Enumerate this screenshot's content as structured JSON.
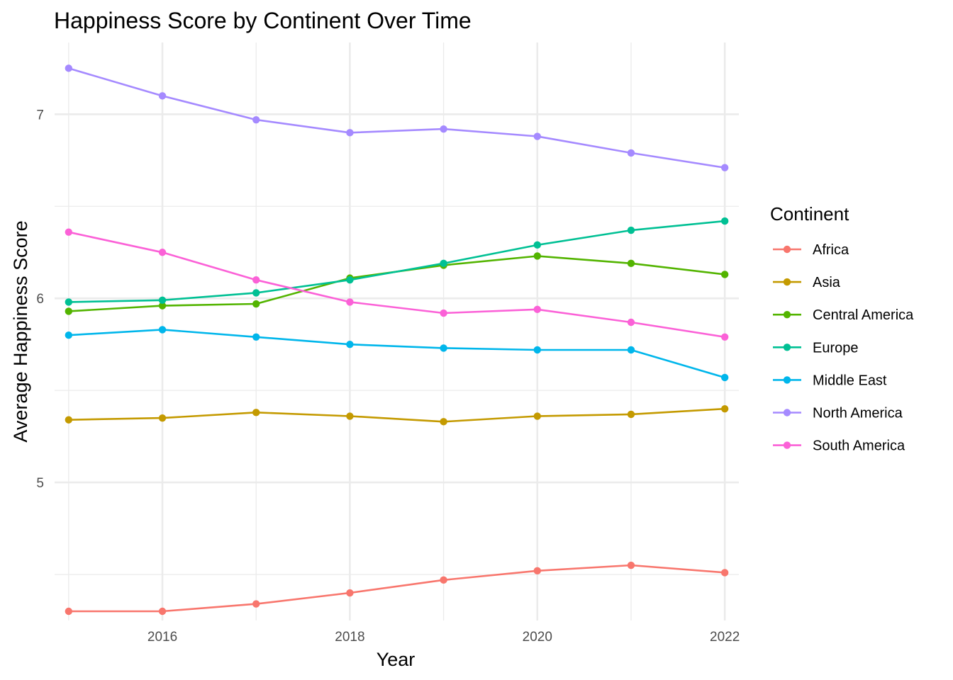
{
  "chart_data": {
    "type": "line",
    "title": "Happiness Score by Continent Over Time",
    "xlabel": "Year",
    "ylabel": "Average Happiness Score",
    "x": [
      2015,
      2016,
      2017,
      2018,
      2019,
      2020,
      2021,
      2022
    ],
    "xlim": [
      2014.85,
      2022.15
    ],
    "ylim": [
      4.25,
      7.39
    ],
    "x_major_ticks": [
      2016,
      2018,
      2020,
      2022
    ],
    "x_minor_ticks": [
      2015,
      2017,
      2019,
      2021
    ],
    "y_major_ticks": [
      5,
      6,
      7
    ],
    "y_minor_ticks": [
      4.5,
      5.5,
      6.5
    ],
    "grid": true,
    "legend": {
      "title": "Continent",
      "position": "right"
    },
    "series": [
      {
        "name": "Africa",
        "color": "#F8766D",
        "values": [
          4.3,
          4.3,
          4.34,
          4.4,
          4.47,
          4.52,
          4.55,
          4.51
        ]
      },
      {
        "name": "Asia",
        "color": "#C49A00",
        "values": [
          5.34,
          5.35,
          5.38,
          5.36,
          5.33,
          5.36,
          5.37,
          5.4
        ]
      },
      {
        "name": "Central America",
        "color": "#53B400",
        "values": [
          5.93,
          5.96,
          5.97,
          6.11,
          6.18,
          6.23,
          6.19,
          6.13
        ]
      },
      {
        "name": "Europe",
        "color": "#00C094",
        "values": [
          5.98,
          5.99,
          6.03,
          6.1,
          6.19,
          6.29,
          6.37,
          6.42
        ]
      },
      {
        "name": "Middle East",
        "color": "#00B6EB",
        "values": [
          5.8,
          5.83,
          5.79,
          5.75,
          5.73,
          5.72,
          5.72,
          5.57
        ]
      },
      {
        "name": "North America",
        "color": "#A58AFF",
        "values": [
          7.25,
          7.1,
          6.97,
          6.9,
          6.92,
          6.88,
          6.79,
          6.71
        ]
      },
      {
        "name": "South America",
        "color": "#FB61D7",
        "values": [
          6.36,
          6.25,
          6.1,
          5.98,
          5.92,
          5.94,
          5.87,
          5.79
        ]
      }
    ]
  }
}
